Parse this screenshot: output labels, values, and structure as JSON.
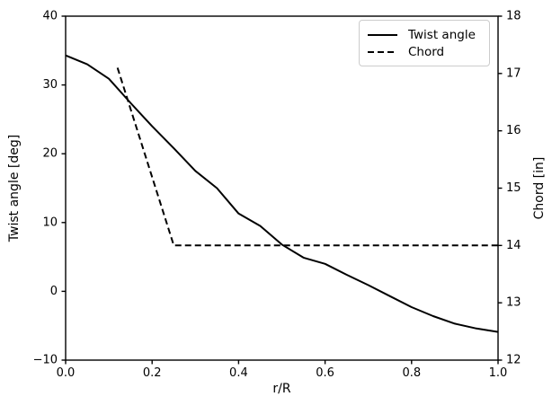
{
  "chart_data": {
    "type": "line",
    "title": "",
    "xlabel": "r/R",
    "ylabel_left": "Twist angle [deg]",
    "ylabel_right": "Chord [in]",
    "xlim": [
      0.0,
      1.0
    ],
    "ylim_left": [
      -10,
      40
    ],
    "ylim_right": [
      12,
      18
    ],
    "grid": false,
    "legend_position": "upper right",
    "x_ticks": {
      "values": [
        0.0,
        0.2,
        0.4,
        0.6,
        0.8,
        1.0
      ],
      "labels": [
        "0.0",
        "0.2",
        "0.4",
        "0.6",
        "0.8",
        "1.0"
      ]
    },
    "y_left_ticks": {
      "values": [
        -10,
        0,
        10,
        20,
        30,
        40
      ],
      "labels": [
        "−10",
        "0",
        "10",
        "20",
        "30",
        "40"
      ]
    },
    "y_right_ticks": {
      "values": [
        12,
        13,
        14,
        15,
        16,
        17,
        18
      ],
      "labels": [
        "12",
        "13",
        "14",
        "15",
        "16",
        "17",
        "18"
      ]
    },
    "series": [
      {
        "name": "Twist angle",
        "axis": "left",
        "line_style": "solid",
        "color": "#000000",
        "x": [
          0.0,
          0.05,
          0.1,
          0.15,
          0.2,
          0.25,
          0.3,
          0.35,
          0.4,
          0.45,
          0.5,
          0.55,
          0.6,
          0.65,
          0.7,
          0.75,
          0.8,
          0.85,
          0.9,
          0.95,
          1.0
        ],
        "y": [
          34.3,
          33.0,
          30.9,
          27.4,
          24.0,
          20.8,
          17.5,
          15.0,
          11.3,
          9.5,
          6.8,
          4.9,
          4.0,
          2.4,
          0.9,
          -0.7,
          -2.3,
          -3.6,
          -4.7,
          -5.4,
          -5.9
        ]
      },
      {
        "name": "Chord",
        "axis": "right",
        "line_style": "dashed",
        "color": "#000000",
        "x": [
          0.12,
          0.25,
          0.5,
          0.75,
          1.0
        ],
        "y": [
          17.1,
          14.0,
          14.0,
          14.0,
          14.0
        ]
      }
    ]
  },
  "legend": {
    "items": [
      {
        "label": "Twist angle",
        "line_style": "solid"
      },
      {
        "label": "Chord",
        "line_style": "dashed"
      }
    ]
  },
  "colors": {
    "line": "#000000",
    "text": "#000000",
    "background": "#ffffff",
    "legend_border": "#cccccc"
  }
}
